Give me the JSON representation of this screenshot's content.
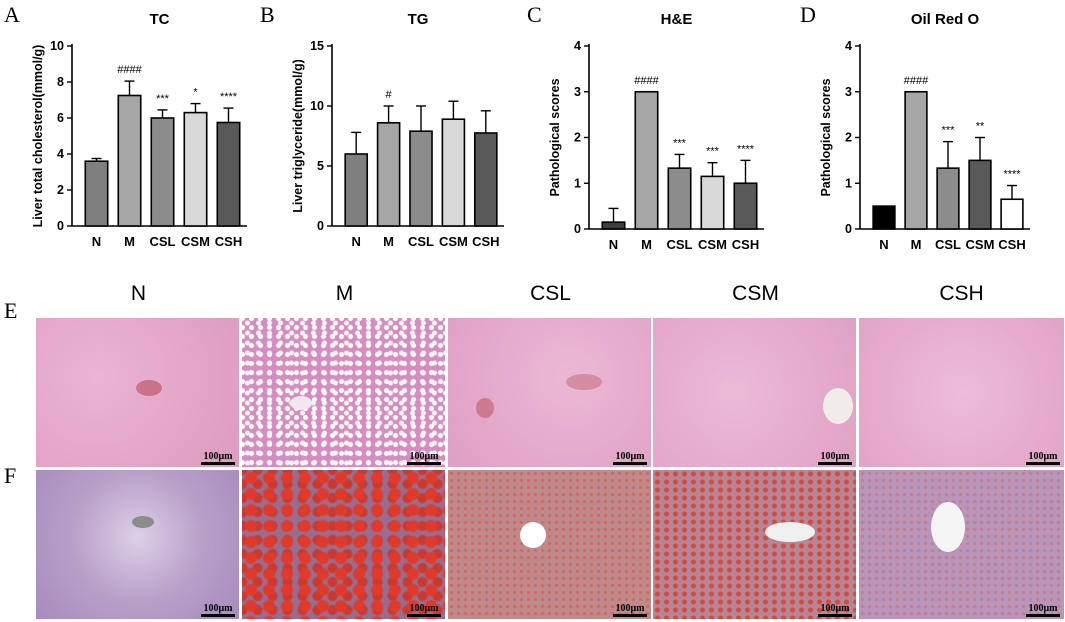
{
  "panel_letters": [
    "A",
    "B",
    "C",
    "D",
    "E",
    "F"
  ],
  "chart_data": [
    {
      "type": "bar",
      "title": "TC",
      "ylabel": "Liver total cholesterol(mmol/g)",
      "xlabel": "",
      "categories": [
        "N",
        "M",
        "CSL",
        "CSM",
        "CSH"
      ],
      "values": [
        3.6,
        7.25,
        6.0,
        6.3,
        5.75
      ],
      "errors": [
        0.15,
        0.8,
        0.45,
        0.5,
        0.8
      ],
      "ylim": [
        0,
        10
      ],
      "yticks": [
        "0",
        "2",
        "4",
        "6",
        "8",
        "10"
      ],
      "significance": [
        "",
        "####",
        "***",
        "*",
        "****"
      ],
      "bar_colors": [
        "#7f7f7f",
        "#a6a6a6",
        "#8c8c8c",
        "#d9d9d9",
        "#595959"
      ]
    },
    {
      "type": "bar",
      "title": "TG",
      "ylabel": "Liver triglyceride(mmol/g)",
      "xlabel": "",
      "categories": [
        "N",
        "M",
        "CSL",
        "CSM",
        "CSH"
      ],
      "values": [
        6.0,
        8.6,
        7.9,
        8.9,
        7.75
      ],
      "errors": [
        1.8,
        1.4,
        2.1,
        1.5,
        1.85
      ],
      "ylim": [
        0,
        15
      ],
      "yticks": [
        "0",
        "5",
        "10",
        "15"
      ],
      "significance": [
        "",
        "#",
        "",
        "",
        ""
      ],
      "bar_colors": [
        "#7f7f7f",
        "#a6a6a6",
        "#8c8c8c",
        "#d9d9d9",
        "#595959"
      ]
    },
    {
      "type": "bar",
      "title": "H&E",
      "ylabel": "Pathological scores",
      "xlabel": "",
      "categories": [
        "N",
        "M",
        "CSL",
        "CSM",
        "CSH"
      ],
      "values": [
        0.15,
        3.0,
        1.33,
        1.15,
        1.0
      ],
      "errors": [
        0.3,
        0.0,
        0.3,
        0.3,
        0.5
      ],
      "ylim": [
        0,
        4
      ],
      "yticks": [
        "0",
        "1",
        "2",
        "3",
        "4"
      ],
      "significance": [
        "",
        "####",
        "***",
        "***",
        "****"
      ],
      "bar_colors": [
        "#404040",
        "#a6a6a6",
        "#8c8c8c",
        "#d9d9d9",
        "#595959"
      ]
    },
    {
      "type": "bar",
      "title": "Oil Red O",
      "ylabel": "Pathological scores",
      "xlabel": "",
      "categories": [
        "N",
        "M",
        "CSL",
        "CSM",
        "CSH"
      ],
      "values": [
        0.5,
        3.0,
        1.33,
        1.5,
        0.65
      ],
      "errors": [
        0.0,
        0.0,
        0.58,
        0.5,
        0.3
      ],
      "ylim": [
        0,
        4
      ],
      "yticks": [
        "0",
        "1",
        "2",
        "3",
        "4"
      ],
      "significance": [
        "",
        "####",
        "***",
        "**",
        "****"
      ],
      "bar_colors": [
        "#000000",
        "#a6a6a6",
        "#8c8c8c",
        "#595959",
        "#ffffff"
      ]
    }
  ],
  "micrograph_columns": [
    "N",
    "M",
    "CSL",
    "CSM",
    "CSH"
  ],
  "scale_bar_label": "100μm",
  "colors": {
    "he_base": "#e6a9cb",
    "he_nuclei": "#8f6fb3",
    "oil_red": "#d8332a",
    "oil_base": "#b68ab2"
  }
}
